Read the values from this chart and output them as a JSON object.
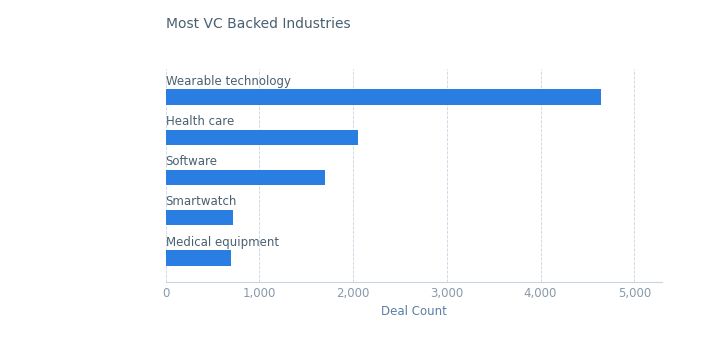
{
  "title": "Most VC Backed Industries",
  "categories": [
    "Medical equipment",
    "Smartwatch",
    "Software",
    "Health care",
    "Wearable technology"
  ],
  "values": [
    700,
    720,
    1700,
    2050,
    4650
  ],
  "bar_color": "#2a7de1",
  "xlabel": "Deal Count",
  "xlim": [
    0,
    5300
  ],
  "xticks": [
    0,
    1000,
    2000,
    3000,
    4000,
    5000
  ],
  "xtick_labels": [
    "0",
    "1,000",
    "2,000",
    "3,000",
    "4,000",
    "5,000"
  ],
  "title_fontsize": 10,
  "label_fontsize": 8.5,
  "xlabel_fontsize": 8.5,
  "xlabel_color": "#5b7fa6",
  "title_color": "#4a6070",
  "tick_color": "#8899aa",
  "bar_height": 0.38,
  "background_color": "#ffffff",
  "grid_color": "#c8d4e0"
}
